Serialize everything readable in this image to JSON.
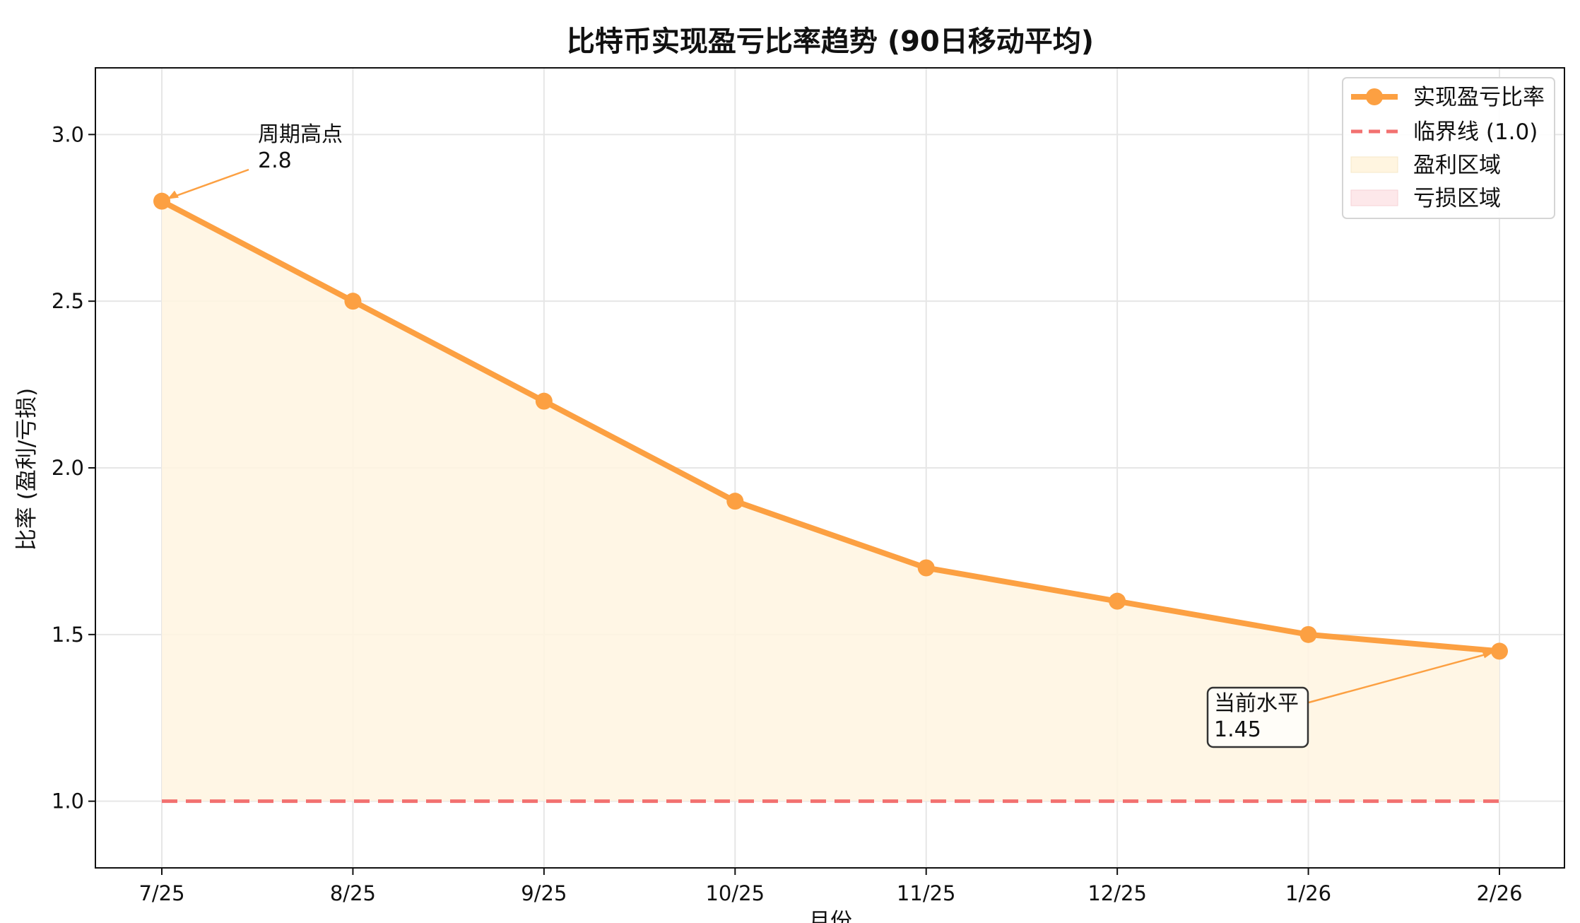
{
  "chart_data": {
    "type": "line",
    "title": "比特币实现盈亏比率趋势 (90日移动平均)",
    "xlabel": "月份",
    "ylabel": "比率 (盈利/亏损)",
    "categories": [
      "7/25",
      "8/25",
      "9/25",
      "10/25",
      "11/25",
      "12/25",
      "1/26",
      "2/26"
    ],
    "series": [
      {
        "name": "实现盈亏比率",
        "values": [
          2.8,
          2.5,
          2.2,
          1.9,
          1.7,
          1.6,
          1.5,
          1.45
        ]
      }
    ],
    "reference_line": {
      "name": "临界线 (1.0)",
      "value": 1.0
    },
    "regions": [
      {
        "name": "盈利区域",
        "color": "#fff5e0"
      },
      {
        "name": "亏损区域",
        "color": "#fde8ea"
      }
    ],
    "ylim": [
      0.8,
      3.2
    ],
    "yticks": [
      "1.0",
      "1.5",
      "2.0",
      "2.5",
      "3.0"
    ],
    "grid": true,
    "legend_position": "top-right",
    "annotations": [
      {
        "title": "周期高点",
        "value": "2.8",
        "target_index": 0
      },
      {
        "title": "当前水平",
        "value": "1.45",
        "target_index": 7,
        "boxed": true
      }
    ],
    "colors": {
      "line": "#fca042",
      "reference": "#f27170",
      "profit_fill": "#fff5e0",
      "loss_fill": "#fde8ea",
      "grid": "#e6e6e6"
    }
  }
}
